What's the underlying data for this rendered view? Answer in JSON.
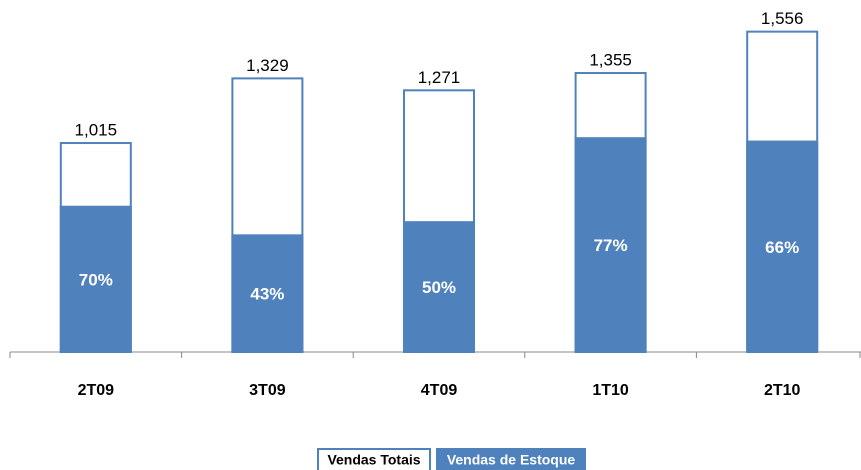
{
  "chart_data": {
    "type": "bar",
    "categories": [
      "2T09",
      "3T09",
      "4T09",
      "1T10",
      "2T10"
    ],
    "series": [
      {
        "name": "Vendas Totais",
        "color": "#ffffff",
        "edge_color": "#4f81bd",
        "values": [
          1015,
          1329,
          1271,
          1355,
          1556
        ],
        "value_labels": [
          "1,015",
          "1,329",
          "1,271",
          "1,355",
          "1,556"
        ]
      },
      {
        "name": "Vendas de Estoque",
        "color": "#4f81bd",
        "share_of": 0,
        "values": [
          70,
          43,
          50,
          77,
          66
        ],
        "value_labels": [
          "70%",
          "43%",
          "50%",
          "77%",
          "66%"
        ]
      }
    ],
    "ylim": [
      0,
      1700
    ],
    "legend": "bottom"
  }
}
